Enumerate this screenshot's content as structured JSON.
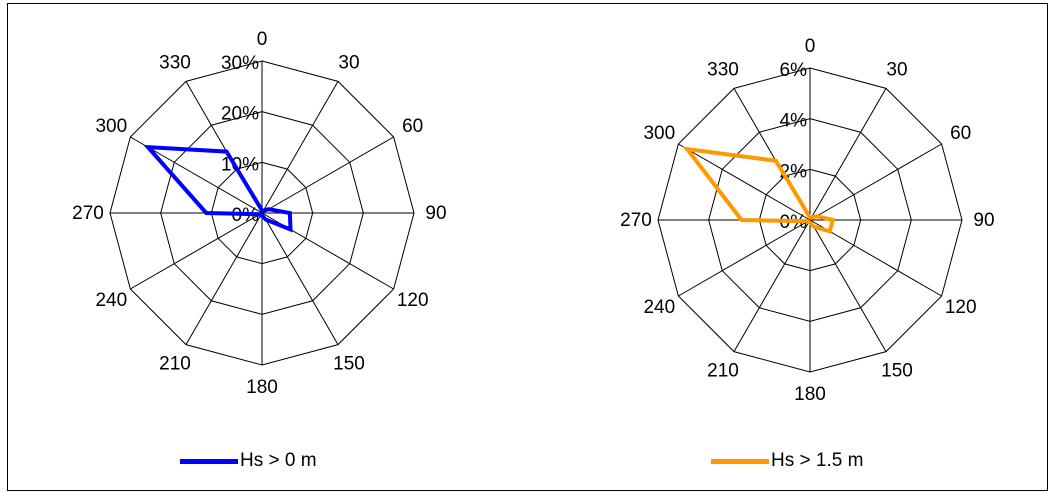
{
  "chart_data": [
    {
      "type": "radar",
      "directions": [
        "0",
        "30",
        "60",
        "90",
        "120",
        "150",
        "180",
        "210",
        "240",
        "270",
        "300",
        "330"
      ],
      "radial_labels": [
        "0%",
        "10%",
        "20%",
        "30%"
      ],
      "rmax": 30,
      "series": [
        {
          "name": "Hs > 0 m",
          "color": "#0000ff",
          "values": [
            0.5,
            0.5,
            1.5,
            5.5,
            6.5,
            1.5,
            0.5,
            0.5,
            0.5,
            11,
            26,
            14
          ]
        }
      ],
      "legend": "bottom"
    },
    {
      "type": "radar",
      "directions": [
        "0",
        "30",
        "60",
        "90",
        "120",
        "150",
        "180",
        "210",
        "240",
        "270",
        "300",
        "330"
      ],
      "radial_labels": [
        "0%",
        "2%",
        "4%",
        "6%"
      ],
      "rmax": 6,
      "series": [
        {
          "name": "Hs > 1.5 m",
          "color": "#ff9900",
          "values": [
            0.1,
            0.1,
            0.3,
            0.9,
            0.9,
            0.3,
            0.1,
            0.1,
            0.1,
            2.7,
            5.6,
            2.7
          ]
        }
      ],
      "legend": "bottom"
    }
  ]
}
